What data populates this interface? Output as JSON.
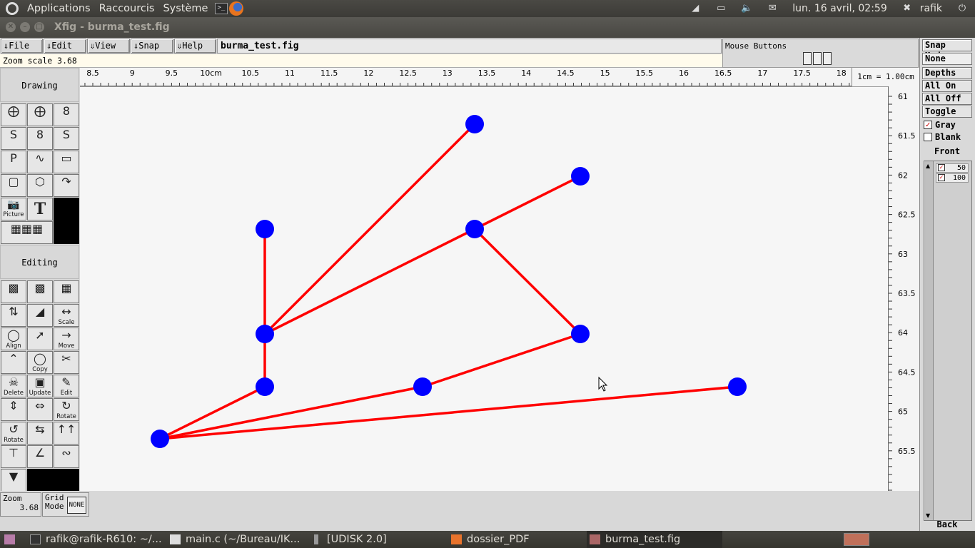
{
  "top_panel": {
    "menus": [
      "Applications",
      "Raccourcis",
      "Système"
    ],
    "datetime": "lun. 16 avril, 02:59",
    "user": "rafik"
  },
  "window": {
    "title": "Xfig - burma_test.fig"
  },
  "menubar": {
    "file": "File",
    "edit": "Edit",
    "view": "View",
    "snap": "Snap",
    "help": "Help",
    "filename": "burma_test.fig",
    "mouse_buttons": "Mouse Buttons"
  },
  "zoom_scale": "Zoom scale  3.68",
  "ruler": {
    "units": "1cm = 1.00cm",
    "top_labels": [
      "8.5",
      "9",
      "9.5",
      "10cm",
      "10.5",
      "11",
      "11.5",
      "12",
      "12.5",
      "13",
      "13.5",
      "14",
      "14.5",
      "15",
      "15.5",
      "16",
      "16.5",
      "17",
      "17.5",
      "18"
    ],
    "right_labels": [
      "61",
      "61.5",
      "62",
      "62.5",
      "63",
      "63.5",
      "64",
      "64.5",
      "65",
      "65.5"
    ]
  },
  "left_panel": {
    "drawing_label": "Drawing",
    "editing_label": "Editing",
    "tool_labels": {
      "picture": "Picture",
      "scale": "Scale",
      "align": "Align",
      "move": "Move",
      "copy": "Copy",
      "delete": "Delete",
      "update": "Update",
      "edit": "Edit",
      "rotate": "Rotate",
      "rotate2": "Rotate",
      "text": "T"
    }
  },
  "bottom": {
    "zoom_label": "Zoom",
    "zoom_value": "3.68",
    "grid_label": "Grid",
    "grid_mode": "Mode",
    "grid_value": "NONE"
  },
  "right_panel": {
    "snap_mode": "Snap Mode",
    "snap_value": "None",
    "depths": "Depths",
    "all_on": "All On",
    "all_off": "All Off",
    "toggle": "Toggle",
    "gray": "Gray",
    "blank": "Blank",
    "front": "Front",
    "back": "Back",
    "depth_items": [
      "50",
      "100"
    ]
  },
  "taskbar": {
    "items": [
      "rafik@rafik-R610: ~/...",
      "main.c (~/Bureau/IK...",
      "[UDISK 2.0]",
      "dossier_PDF",
      "burma_test.fig"
    ]
  },
  "colors": {
    "node": "#0000ff",
    "edge": "#ff0000",
    "canvas": "#f6f6f6"
  }
}
